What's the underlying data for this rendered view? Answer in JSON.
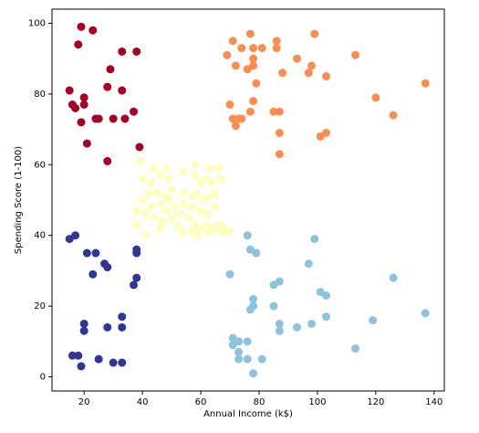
{
  "chart_data": {
    "type": "scatter",
    "xlabel": "Annual Income (k$)",
    "ylabel": "Spending Score (1-100)",
    "xlim": [
      9,
      143.5
    ],
    "ylim": [
      -4,
      104
    ],
    "xticks": [
      20,
      40,
      60,
      80,
      100,
      120,
      140
    ],
    "yticks": [
      0,
      20,
      40,
      60,
      80,
      100
    ],
    "grid": false,
    "series": [
      {
        "color": "#a50026",
        "x": [
          19,
          23,
          18,
          33,
          38,
          29,
          15,
          20,
          16,
          17,
          20,
          28,
          33,
          24,
          25,
          19,
          30,
          34,
          37,
          21,
          28,
          39
        ],
        "values": [
          99,
          98,
          94,
          92,
          92,
          87,
          81,
          79,
          77,
          76,
          77,
          82,
          81,
          73,
          73,
          72,
          73,
          73,
          75,
          66,
          61,
          65
        ]
      },
      {
        "color": "#f88e53",
        "x": [
          71,
          77,
          86,
          99,
          69,
          74,
          78,
          81,
          86,
          72,
          76,
          78,
          78,
          88,
          93,
          97,
          98,
          103,
          113,
          79,
          120,
          137,
          70,
          78,
          71,
          73,
          72,
          74,
          77,
          85,
          87,
          87,
          101,
          103,
          126,
          87
        ],
        "values": [
          95,
          97,
          95,
          97,
          91,
          93,
          93,
          93,
          93,
          88,
          87,
          88,
          90,
          86,
          90,
          86,
          88,
          85,
          91,
          83,
          79,
          83,
          77,
          78,
          73,
          73,
          71,
          73,
          75,
          75,
          75,
          69,
          68,
          69,
          74,
          63
        ]
      },
      {
        "color": "#fefebe",
        "x": [
          39,
          44,
          48,
          58,
          63,
          66,
          40,
          43,
          46,
          49,
          54,
          58,
          60,
          62,
          64,
          67,
          42,
          45,
          48,
          50,
          54,
          57,
          59,
          61,
          63,
          65,
          40,
          43,
          46,
          48,
          51,
          54,
          57,
          60,
          62,
          65,
          38,
          41,
          44,
          47,
          50,
          53,
          56,
          58,
          60,
          62,
          64,
          66,
          68,
          38,
          41,
          46,
          54,
          57,
          59,
          63,
          67,
          70,
          52,
          49
        ],
        "values": [
          61,
          59,
          59,
          60,
          59,
          59,
          56,
          55,
          57,
          56,
          58,
          57,
          55,
          56,
          55,
          56,
          52,
          52,
          51,
          53,
          52,
          51,
          52,
          50,
          51,
          52,
          50,
          48,
          49,
          47,
          48,
          49,
          48,
          47,
          46,
          48,
          47,
          46,
          45,
          44,
          45,
          46,
          45,
          43,
          42,
          43,
          42,
          43,
          42,
          43,
          40,
          42,
          41,
          41,
          40,
          41,
          41,
          41,
          43,
          50
        ]
      },
      {
        "color": "#8fc2dd",
        "x": [
          76,
          99,
          77,
          79,
          70,
          97,
          85,
          87,
          101,
          103,
          126,
          78,
          78,
          85,
          77,
          103,
          119,
          137,
          87,
          87,
          93,
          98,
          71,
          71,
          73,
          76,
          73,
          73,
          76,
          81,
          113,
          78
        ],
        "values": [
          40,
          39,
          36,
          35,
          29,
          32,
          26,
          27,
          24,
          23,
          28,
          22,
          20,
          20,
          19,
          17,
          16,
          18,
          15,
          13,
          14,
          15,
          11,
          9,
          10,
          10,
          7,
          5,
          5,
          5,
          8,
          1
        ]
      },
      {
        "color": "#313695",
        "x": [
          15,
          17,
          21,
          24,
          23,
          27,
          28,
          38,
          38,
          37,
          38,
          33,
          20,
          20,
          28,
          33,
          16,
          18,
          25,
          30,
          33,
          19
        ],
        "values": [
          39,
          40,
          35,
          35,
          29,
          32,
          31,
          35,
          36,
          26,
          28,
          17,
          15,
          13,
          14,
          14,
          6,
          6,
          5,
          4,
          4,
          3
        ]
      }
    ]
  }
}
